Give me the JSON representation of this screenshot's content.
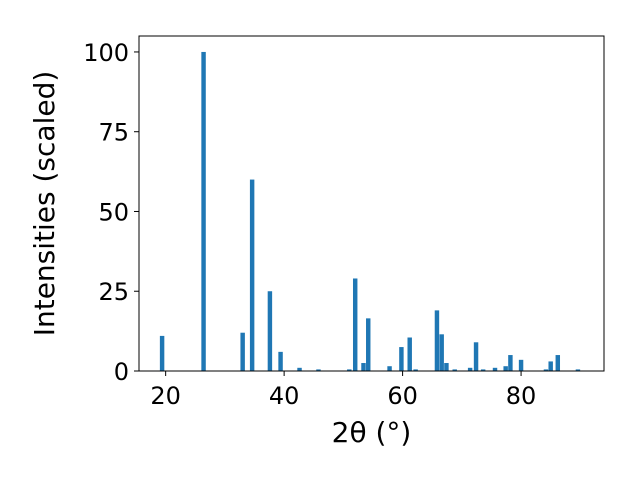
{
  "chart_data": {
    "type": "bar",
    "xlabel": "2θ (°)",
    "ylabel": "Intensities (scaled)",
    "xlim": [
      15.5,
      94
    ],
    "ylim": [
      0,
      105
    ],
    "xticks": [
      20,
      40,
      60,
      80
    ],
    "yticks": [
      0,
      25,
      50,
      75,
      100
    ],
    "bar_color": "#1f77b4",
    "bar_width": 0.75,
    "x": [
      19.4,
      26.4,
      33.0,
      34.6,
      37.6,
      39.4,
      42.6,
      45.8,
      51.0,
      52.0,
      53.4,
      54.2,
      57.8,
      59.8,
      61.2,
      62.2,
      65.8,
      66.6,
      67.4,
      68.8,
      71.4,
      72.4,
      73.6,
      75.6,
      77.4,
      78.2,
      80.0,
      84.2,
      85.0,
      86.2,
      89.6
    ],
    "values": [
      11,
      100,
      12,
      60,
      25,
      6,
      1,
      0.5,
      0.5,
      29,
      2.5,
      16.5,
      1.5,
      7.5,
      10.5,
      0.5,
      19,
      11.5,
      2.5,
      0.5,
      1,
      9,
      0.5,
      1,
      1.5,
      5,
      3.5,
      0.5,
      3,
      5,
      0.5
    ]
  }
}
